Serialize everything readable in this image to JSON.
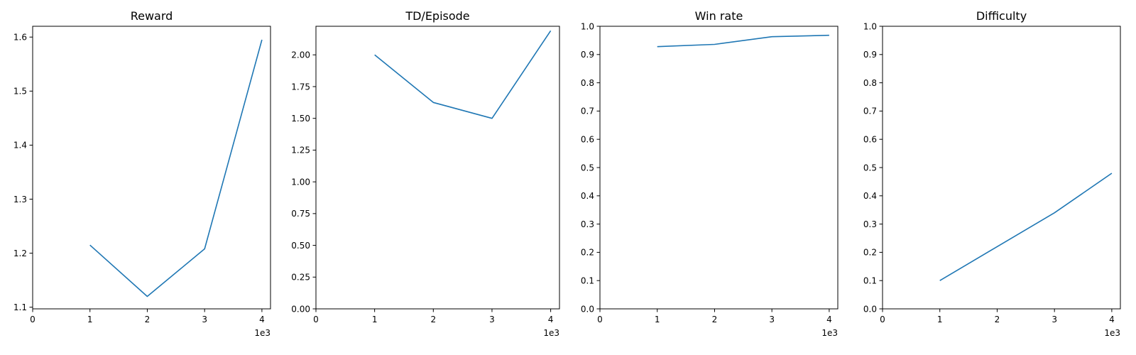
{
  "chart_data": [
    {
      "type": "line",
      "title": "Reward",
      "x": [
        1000,
        2000,
        3000,
        4000
      ],
      "series": [
        {
          "values": [
            1.215,
            1.12,
            1.208,
            1.595
          ]
        }
      ],
      "xlim": [
        0,
        4150
      ],
      "ylim": [
        1.097,
        1.62
      ],
      "xticks": [
        0,
        1000,
        2000,
        3000,
        4000
      ],
      "xtick_labels": [
        "0",
        "1",
        "2",
        "3",
        "4"
      ],
      "x_offset_label": "1e3",
      "yticks": [
        1.1,
        1.2,
        1.3,
        1.4,
        1.5,
        1.6
      ],
      "ytick_labels": [
        "1.1",
        "1.2",
        "1.3",
        "1.4",
        "1.5",
        "1.6"
      ],
      "grid": false,
      "color": "#1f77b4"
    },
    {
      "type": "line",
      "title": "TD/Episode",
      "x": [
        1000,
        2000,
        3000,
        4000
      ],
      "series": [
        {
          "values": [
            2.0,
            1.625,
            1.5,
            2.19
          ]
        }
      ],
      "xlim": [
        0,
        4150
      ],
      "ylim": [
        0,
        2.225
      ],
      "xticks": [
        0,
        1000,
        2000,
        3000,
        4000
      ],
      "xtick_labels": [
        "0",
        "1",
        "2",
        "3",
        "4"
      ],
      "x_offset_label": "1e3",
      "yticks": [
        0,
        0.25,
        0.5,
        0.75,
        1.0,
        1.25,
        1.5,
        1.75,
        2.0
      ],
      "ytick_labels": [
        "0.00",
        "0.25",
        "0.50",
        "0.75",
        "1.00",
        "1.25",
        "1.50",
        "1.75",
        "2.00"
      ],
      "grid": false,
      "color": "#1f77b4"
    },
    {
      "type": "line",
      "title": "Win rate",
      "x": [
        1000,
        2000,
        3000,
        4000
      ],
      "series": [
        {
          "values": [
            0.928,
            0.936,
            0.963,
            0.968
          ]
        }
      ],
      "xlim": [
        0,
        4150
      ],
      "ylim": [
        0,
        1.0
      ],
      "xticks": [
        0,
        1000,
        2000,
        3000,
        4000
      ],
      "xtick_labels": [
        "0",
        "1",
        "2",
        "3",
        "4"
      ],
      "x_offset_label": "1e3",
      "yticks": [
        0,
        0.1,
        0.2,
        0.3,
        0.4,
        0.5,
        0.6,
        0.7,
        0.8,
        0.9,
        1.0
      ],
      "ytick_labels": [
        "0.0",
        "0.1",
        "0.2",
        "0.3",
        "0.4",
        "0.5",
        "0.6",
        "0.7",
        "0.8",
        "0.9",
        "1.0"
      ],
      "grid": false,
      "color": "#1f77b4"
    },
    {
      "type": "line",
      "title": "Difficulty",
      "x": [
        1000,
        2000,
        3000,
        4000
      ],
      "series": [
        {
          "values": [
            0.1,
            0.22,
            0.34,
            0.48
          ]
        }
      ],
      "xlim": [
        0,
        4150
      ],
      "ylim": [
        0,
        1.0
      ],
      "xticks": [
        0,
        1000,
        2000,
        3000,
        4000
      ],
      "xtick_labels": [
        "0",
        "1",
        "2",
        "3",
        "4"
      ],
      "x_offset_label": "1e3",
      "yticks": [
        0,
        0.1,
        0.2,
        0.3,
        0.4,
        0.5,
        0.6,
        0.7,
        0.8,
        0.9,
        1.0
      ],
      "ytick_labels": [
        "0.0",
        "0.1",
        "0.2",
        "0.3",
        "0.4",
        "0.5",
        "0.6",
        "0.7",
        "0.8",
        "0.9",
        "1.0"
      ],
      "grid": false,
      "color": "#1f77b4"
    }
  ]
}
